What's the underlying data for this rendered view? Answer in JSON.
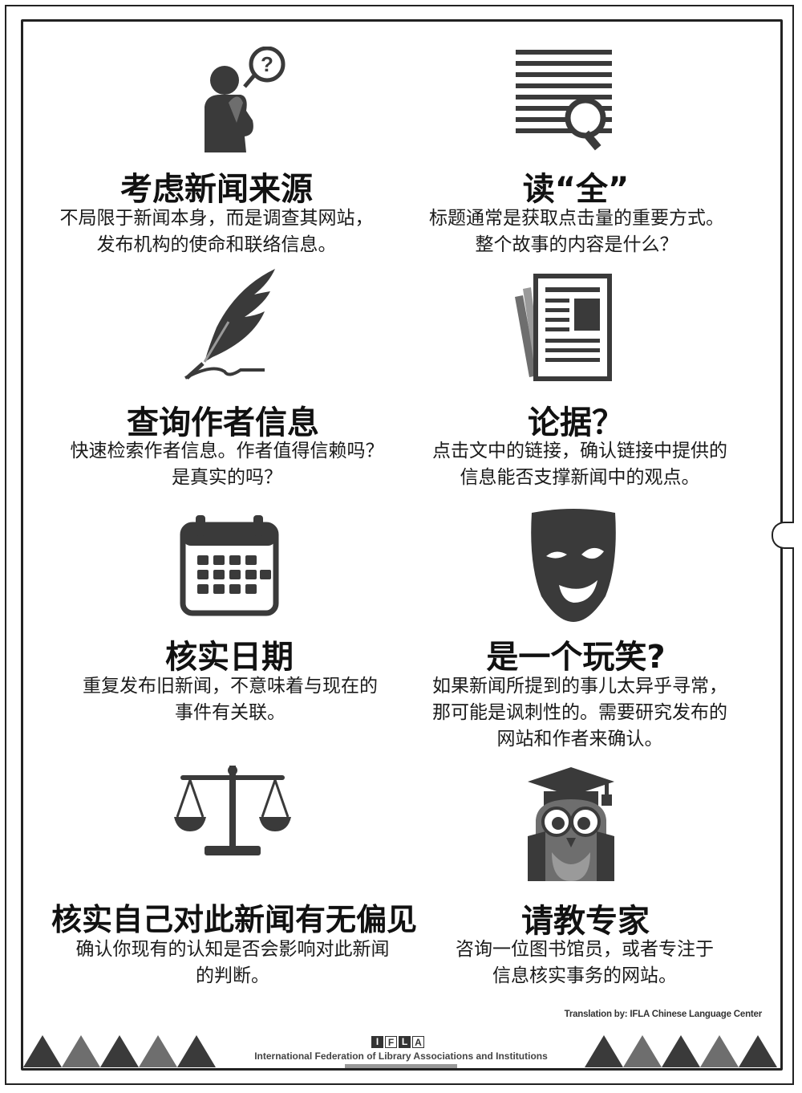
{
  "cards": [
    {
      "icon": "person-question-icon",
      "title": "考虑新闻来源",
      "lines": [
        "不局限于新闻本身，而是调查其网站，",
        "发布机构的使命和联络信息。"
      ]
    },
    {
      "icon": "magnifier-text-icon",
      "title": "读“全”",
      "lines": [
        "标题通常是获取点击量的重要方式。",
        "整个故事的内容是什么？"
      ]
    },
    {
      "icon": "feather-quill-icon",
      "title": "查询作者信息",
      "lines": [
        "快速检索作者信息。作者值得信赖吗？",
        "是真实的吗？"
      ]
    },
    {
      "icon": "newspaper-icon",
      "title": "论据？",
      "lines": [
        "点击文中的链接，确认链接中提供的",
        "信息能否支撑新闻中的观点。"
      ]
    },
    {
      "icon": "calendar-icon",
      "title": "核实日期",
      "lines": [
        "重复发布旧新闻，不意味着与现在的",
        "事件有关联。"
      ]
    },
    {
      "icon": "mask-icon",
      "title": "是一个玩笑?",
      "lines": [
        "如果新闻所提到的事儿太异乎寻常，",
        "那可能是讽刺性的。需要研究发布的",
        "网站和作者来确认。"
      ]
    },
    {
      "icon": "scales-icon",
      "title": "核实自己对此新闻有无偏见",
      "lines": [
        "确认你现有的认知是否会影响对此新闻",
        "的判断。"
      ]
    },
    {
      "icon": "owl-graduate-icon",
      "title": "请教专家",
      "lines": [
        "咨询一位图书馆员，或者专注于",
        "信息核实事务的网站。"
      ]
    }
  ],
  "credit": "Translation by: IFLA Chinese Language Center",
  "footer": {
    "logo_letters": [
      "I",
      "F",
      "L",
      "A"
    ],
    "org_name": "International Federation of Library Associations and Institutions"
  },
  "colors": {
    "dark": "#3a3a3a",
    "mid": "#6e6e6e",
    "light": "#9a9a9a"
  }
}
